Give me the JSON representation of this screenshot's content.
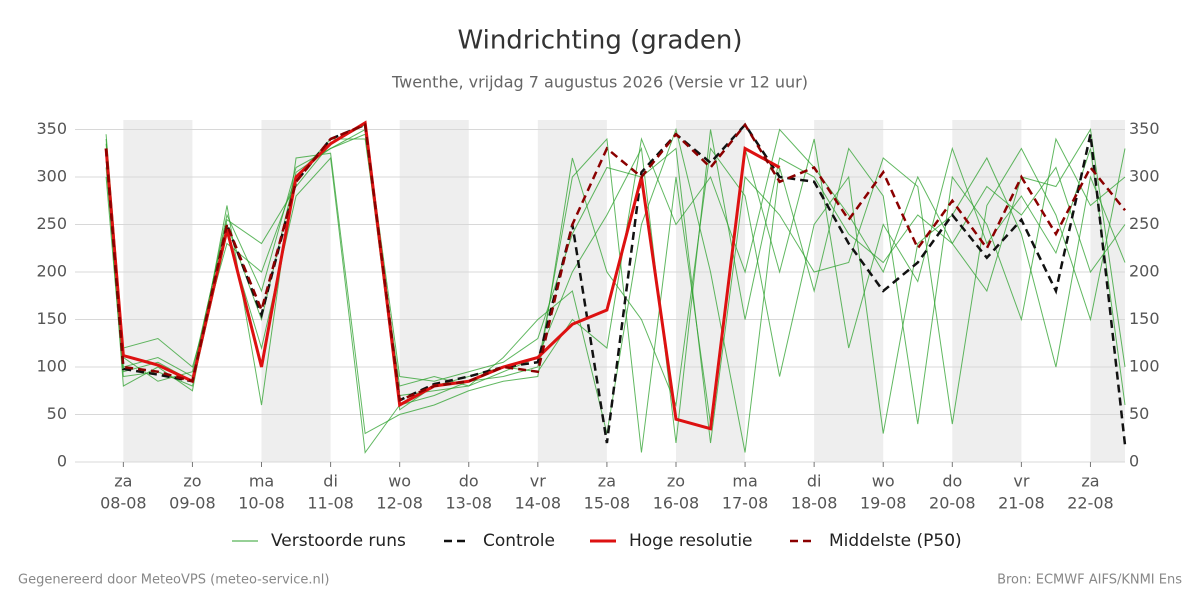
{
  "chart_data": {
    "type": "line",
    "title": "Windrichting (graden)",
    "subtitle": "Twenthe, vrijdag  7 augustus 2026 (Versie vr 12 uur)",
    "footer_left": "Gegenereerd door MeteoVPS (meteo-service.nl)",
    "footer_right": "Bron: ECMWF AIFS/KNMI Ens",
    "x": [
      -0.25,
      0,
      0.5,
      1,
      1.5,
      2,
      2.5,
      3,
      3.5,
      4,
      4.5,
      5,
      5.5,
      6,
      6.5,
      7,
      7.5,
      8,
      8.5,
      9,
      9.5,
      10,
      10.5,
      11,
      11.5,
      12,
      12.5,
      13,
      13.5,
      14,
      14.5
    ],
    "xlim": [
      -0.7,
      14.5
    ],
    "xticks": [
      {
        "value": 0,
        "label": "za"
      },
      {
        "value": 1,
        "label": "zo"
      },
      {
        "value": 2,
        "label": "ma"
      },
      {
        "value": 3,
        "label": "di"
      },
      {
        "value": 4,
        "label": "wo"
      },
      {
        "value": 5,
        "label": "do"
      },
      {
        "value": 6,
        "label": "vr"
      },
      {
        "value": 7,
        "label": "za"
      },
      {
        "value": 8,
        "label": "zo"
      },
      {
        "value": 9,
        "label": "ma"
      },
      {
        "value": 10,
        "label": "di"
      },
      {
        "value": 11,
        "label": "wo"
      },
      {
        "value": 12,
        "label": "do"
      },
      {
        "value": 13,
        "label": "vr"
      },
      {
        "value": 14,
        "label": "za"
      }
    ],
    "xtick_dates": [
      "08-08",
      "09-08",
      "10-08",
      "11-08",
      "12-08",
      "13-08",
      "14-08",
      "15-08",
      "16-08",
      "17-08",
      "18-08",
      "19-08",
      "20-08",
      "21-08",
      "22-08"
    ],
    "ylim": [
      0,
      360
    ],
    "yticks": [
      0,
      50,
      100,
      150,
      200,
      250,
      300,
      350
    ],
    "grid": true,
    "ensemble": {
      "name": "Verstoorde runs",
      "color": "#2ca02c",
      "members": [
        [
          340,
          100,
          110,
          90,
          260,
          180,
          310,
          330,
          350,
          70,
          75,
          80,
          95,
          110,
          200,
          260,
          330,
          20,
          350,
          150,
          320,
          300,
          240,
          210,
          260,
          230,
          290,
          260,
          310,
          200,
          250
        ],
        [
          300,
          90,
          95,
          80,
          240,
          120,
          280,
          320,
          10,
          60,
          70,
          85,
          90,
          100,
          300,
          340,
          10,
          300,
          40,
          330,
          200,
          340,
          120,
          250,
          190,
          330,
          230,
          280,
          220,
          330,
          60
        ],
        [
          345,
          120,
          130,
          100,
          230,
          200,
          300,
          340,
          340,
          80,
          90,
          80,
          110,
          150,
          180,
          30,
          250,
          350,
          200,
          10,
          310,
          180,
          330,
          280,
          40,
          300,
          250,
          150,
          340,
          270,
          300
        ],
        [
          320,
          80,
          100,
          75,
          270,
          60,
          320,
          325,
          30,
          50,
          60,
          75,
          85,
          90,
          320,
          200,
          150,
          60,
          330,
          280,
          90,
          250,
          300,
          30,
          230,
          260,
          320,
          240,
          100,
          300,
          210
        ],
        [
          310,
          110,
          85,
          95,
          255,
          230,
          290,
          335,
          355,
          90,
          85,
          95,
          105,
          130,
          240,
          310,
          300,
          330,
          20,
          300,
          260,
          200,
          210,
          320,
          290,
          40,
          270,
          330,
          260,
          150,
          330
        ],
        [
          335,
          95,
          105,
          85,
          250,
          150,
          305,
          330,
          345,
          55,
          80,
          90,
          100,
          95,
          150,
          120,
          340,
          250,
          300,
          200,
          350,
          310,
          260,
          200,
          300,
          230,
          180,
          300,
          290,
          350,
          100
        ]
      ]
    },
    "series": [
      {
        "name": "Controle",
        "color": "#111111",
        "dash": true,
        "values": [
          330,
          98,
          92,
          85,
          250,
          155,
          295,
          340,
          355,
          65,
          82,
          90,
          100,
          105,
          250,
          20,
          305,
          345,
          315,
          355,
          300,
          295,
          230,
          180,
          210,
          260,
          215,
          255,
          180,
          345,
          18
        ]
      },
      {
        "name": "Hoge resolutie",
        "color": "#dd1111",
        "dash": false,
        "values": [
          330,
          112,
          102,
          85,
          245,
          100,
          300,
          335,
          357,
          60,
          80,
          85,
          100,
          110,
          145,
          160,
          300,
          45,
          35,
          330,
          310,
          null,
          null,
          null,
          null,
          null,
          null,
          null,
          null,
          null,
          null
        ]
      },
      {
        "name": "Middelste (P50)",
        "color": "#8b0000",
        "dash": true,
        "values": [
          330,
          100,
          95,
          85,
          250,
          160,
          295,
          340,
          355,
          65,
          80,
          85,
          100,
          95,
          250,
          330,
          300,
          345,
          310,
          355,
          295,
          310,
          255,
          305,
          225,
          275,
          225,
          300,
          240,
          310,
          265
        ]
      }
    ]
  }
}
